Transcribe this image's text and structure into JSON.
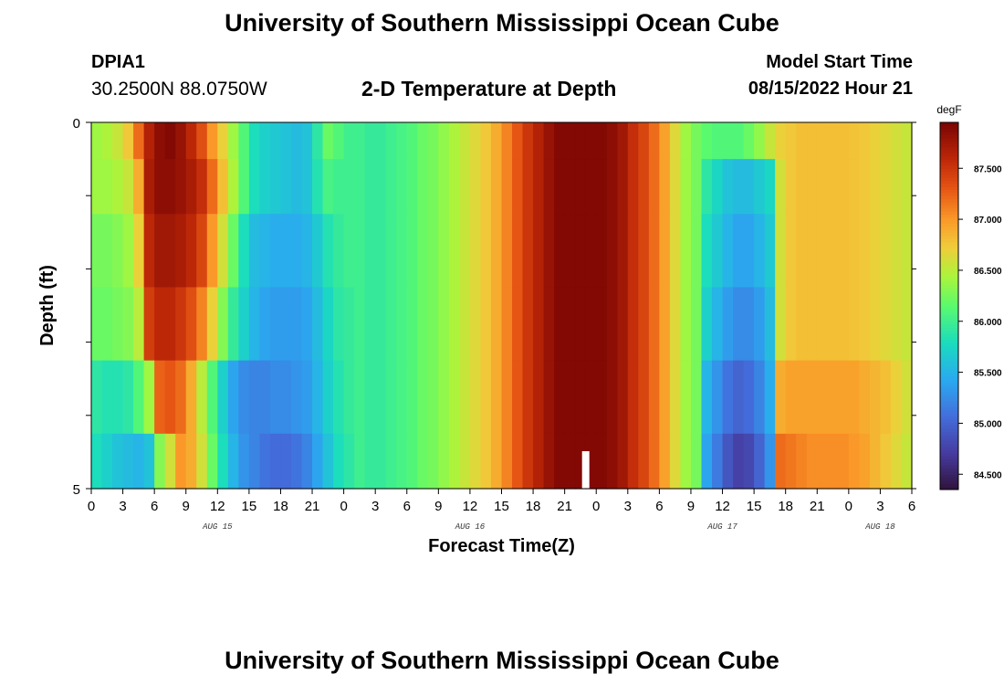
{
  "header": {
    "title": "University of Southern Mississippi Ocean Cube",
    "station_id": "DPIA1",
    "coords": "30.2500N  88.0750W",
    "plot_title": "2-D Temperature at Depth",
    "start_label": "Model Start Time",
    "start_value": "08/15/2022 Hour 21"
  },
  "footer": {
    "title": "University of Southern Mississippi Ocean Cube"
  },
  "chart_data": {
    "type": "heatmap",
    "title": "2-D Temperature at Depth",
    "xlabel": "Forecast Time(Z)",
    "ylabel": "Depth (ft)",
    "x_tick_labels": [
      "0",
      "3",
      "6",
      "9",
      "12",
      "15",
      "18",
      "21",
      "0",
      "3",
      "6",
      "9",
      "12",
      "15",
      "18",
      "21",
      "0",
      "3",
      "6",
      "9",
      "12",
      "15",
      "18",
      "21",
      "0",
      "3",
      "6"
    ],
    "date_labels": [
      {
        "label": "AUG 15",
        "hour": 12
      },
      {
        "label": "AUG 16",
        "hour": 36
      },
      {
        "label": "AUG 17",
        "hour": 60
      },
      {
        "label": "AUG 18",
        "hour": 75
      }
    ],
    "y_tick_labels": [
      "0",
      "5"
    ],
    "xlim": [
      0,
      78
    ],
    "ylim": [
      0,
      5
    ],
    "depth_rows": [
      0.25,
      0.75,
      1.75,
      2.75,
      3.75,
      4.75
    ],
    "current_time_marker_hour": 47,
    "colorbar": {
      "unit": "degF",
      "min": 84.35,
      "max": 87.95,
      "tick_labels": [
        "84.500",
        "85.000",
        "85.500",
        "86.000",
        "86.500",
        "87.000",
        "87.500"
      ],
      "tick_values": [
        84.5,
        85.0,
        85.5,
        86.0,
        86.5,
        87.0,
        87.5
      ]
    },
    "series": [
      {
        "values": [
          86.4,
          86.45,
          86.55,
          86.75,
          87.2,
          87.65,
          87.85,
          87.9,
          87.8,
          87.6,
          87.35,
          87.0,
          86.7,
          86.4,
          86.1,
          85.8,
          85.7,
          85.65,
          85.6,
          85.55,
          85.6,
          85.9,
          86.2,
          86.1,
          86.0,
          86.0,
          85.95,
          85.95,
          86.0,
          86.05,
          86.1,
          86.2,
          86.25,
          86.35,
          86.45,
          86.55,
          86.65,
          86.75,
          86.9,
          87.1,
          87.3,
          87.5,
          87.65,
          87.8,
          87.9,
          87.9,
          87.9,
          87.9,
          87.9,
          87.85,
          87.75,
          87.55,
          87.4,
          87.2,
          86.95,
          86.65,
          86.4,
          86.25,
          86.15,
          86.1,
          86.1,
          86.1,
          86.2,
          86.35,
          86.55,
          86.7,
          86.75,
          86.8,
          86.8,
          86.8,
          86.8,
          86.8,
          86.78,
          86.75,
          86.7,
          86.65,
          86.6,
          86.55
        ]
      },
      {
        "values": [
          86.4,
          86.4,
          86.45,
          86.55,
          86.9,
          87.7,
          87.85,
          87.85,
          87.8,
          87.7,
          87.55,
          87.2,
          86.8,
          86.45,
          86.1,
          85.8,
          85.7,
          85.65,
          85.6,
          85.55,
          85.6,
          85.85,
          86.05,
          86.0,
          86.0,
          86.0,
          85.95,
          85.95,
          86.0,
          86.05,
          86.1,
          86.2,
          86.25,
          86.35,
          86.45,
          86.55,
          86.65,
          86.75,
          86.9,
          87.1,
          87.3,
          87.5,
          87.65,
          87.8,
          87.9,
          87.9,
          87.9,
          87.9,
          87.9,
          87.85,
          87.75,
          87.55,
          87.4,
          87.2,
          86.95,
          86.65,
          86.4,
          86.25,
          85.9,
          85.75,
          85.6,
          85.55,
          85.55,
          85.65,
          85.75,
          86.6,
          86.75,
          86.8,
          86.8,
          86.8,
          86.8,
          86.8,
          86.78,
          86.75,
          86.7,
          86.65,
          86.6,
          86.55
        ]
      },
      {
        "values": [
          86.25,
          86.25,
          86.3,
          86.4,
          86.7,
          87.6,
          87.75,
          87.75,
          87.7,
          87.6,
          87.4,
          87.0,
          86.6,
          86.2,
          85.8,
          85.55,
          85.5,
          85.45,
          85.45,
          85.45,
          85.5,
          85.65,
          85.85,
          85.95,
          86.0,
          86.0,
          85.95,
          85.95,
          86.0,
          86.05,
          86.1,
          86.2,
          86.25,
          86.35,
          86.45,
          86.55,
          86.65,
          86.75,
          86.9,
          87.1,
          87.3,
          87.5,
          87.65,
          87.8,
          87.9,
          87.9,
          87.9,
          87.9,
          87.9,
          87.85,
          87.75,
          87.55,
          87.4,
          87.2,
          86.95,
          86.65,
          86.4,
          86.25,
          85.8,
          85.65,
          85.5,
          85.4,
          85.4,
          85.5,
          85.65,
          86.6,
          86.75,
          86.8,
          86.8,
          86.8,
          86.8,
          86.8,
          86.78,
          86.75,
          86.7,
          86.65,
          86.6,
          86.55
        ]
      },
      {
        "values": [
          86.2,
          86.2,
          86.25,
          86.3,
          86.5,
          87.45,
          87.6,
          87.6,
          87.5,
          87.35,
          87.1,
          86.7,
          86.3,
          85.95,
          85.7,
          85.5,
          85.4,
          85.35,
          85.35,
          85.35,
          85.4,
          85.55,
          85.75,
          85.9,
          85.95,
          86.0,
          85.95,
          85.95,
          86.0,
          86.05,
          86.1,
          86.2,
          86.25,
          86.35,
          86.45,
          86.55,
          86.65,
          86.75,
          86.9,
          87.1,
          87.3,
          87.5,
          87.65,
          87.8,
          87.9,
          87.9,
          87.9,
          87.9,
          87.9,
          87.85,
          87.75,
          87.55,
          87.4,
          87.2,
          86.95,
          86.65,
          86.4,
          86.25,
          85.7,
          85.5,
          85.35,
          85.25,
          85.25,
          85.35,
          85.55,
          86.6,
          86.75,
          86.8,
          86.8,
          86.8,
          86.8,
          86.8,
          86.78,
          86.75,
          86.7,
          86.65,
          86.6,
          86.55
        ]
      },
      {
        "values": [
          85.9,
          85.85,
          85.85,
          85.9,
          86.1,
          86.4,
          87.25,
          87.3,
          87.2,
          86.9,
          86.5,
          86.1,
          85.7,
          85.4,
          85.25,
          85.2,
          85.2,
          85.25,
          85.25,
          85.3,
          85.35,
          85.5,
          85.7,
          85.85,
          85.95,
          86.0,
          85.95,
          85.95,
          86.0,
          86.05,
          86.1,
          86.2,
          86.25,
          86.35,
          86.45,
          86.55,
          86.65,
          86.75,
          86.9,
          87.1,
          87.3,
          87.5,
          87.65,
          87.8,
          87.9,
          87.9,
          87.9,
          87.9,
          87.9,
          87.85,
          87.75,
          87.55,
          87.4,
          87.2,
          86.95,
          86.65,
          86.4,
          86.25,
          85.5,
          85.3,
          85.1,
          85.0,
          85.05,
          85.2,
          85.45,
          86.9,
          86.95,
          86.95,
          86.95,
          86.95,
          86.95,
          86.95,
          86.95,
          86.9,
          86.85,
          86.8,
          86.7,
          86.6
        ]
      },
      {
        "values": [
          85.8,
          85.7,
          85.6,
          85.55,
          85.5,
          85.6,
          86.3,
          86.6,
          87.0,
          86.9,
          86.6,
          86.2,
          85.8,
          85.5,
          85.3,
          85.2,
          85.1,
          85.05,
          85.05,
          85.1,
          85.2,
          85.4,
          85.6,
          85.8,
          85.9,
          86.0,
          85.95,
          85.95,
          86.0,
          86.05,
          86.1,
          86.2,
          86.25,
          86.35,
          86.45,
          86.55,
          86.65,
          86.75,
          86.9,
          87.1,
          87.3,
          87.5,
          87.65,
          87.8,
          87.9,
          87.9,
          87.9,
          87.9,
          87.9,
          87.85,
          87.75,
          87.55,
          87.4,
          87.2,
          86.95,
          86.65,
          86.4,
          86.25,
          85.4,
          85.15,
          84.9,
          84.75,
          84.8,
          85.0,
          85.3,
          87.2,
          87.15,
          87.1,
          87.05,
          87.05,
          87.05,
          87.05,
          87.0,
          86.95,
          86.85,
          86.75,
          86.65,
          86.55
        ]
      }
    ]
  }
}
